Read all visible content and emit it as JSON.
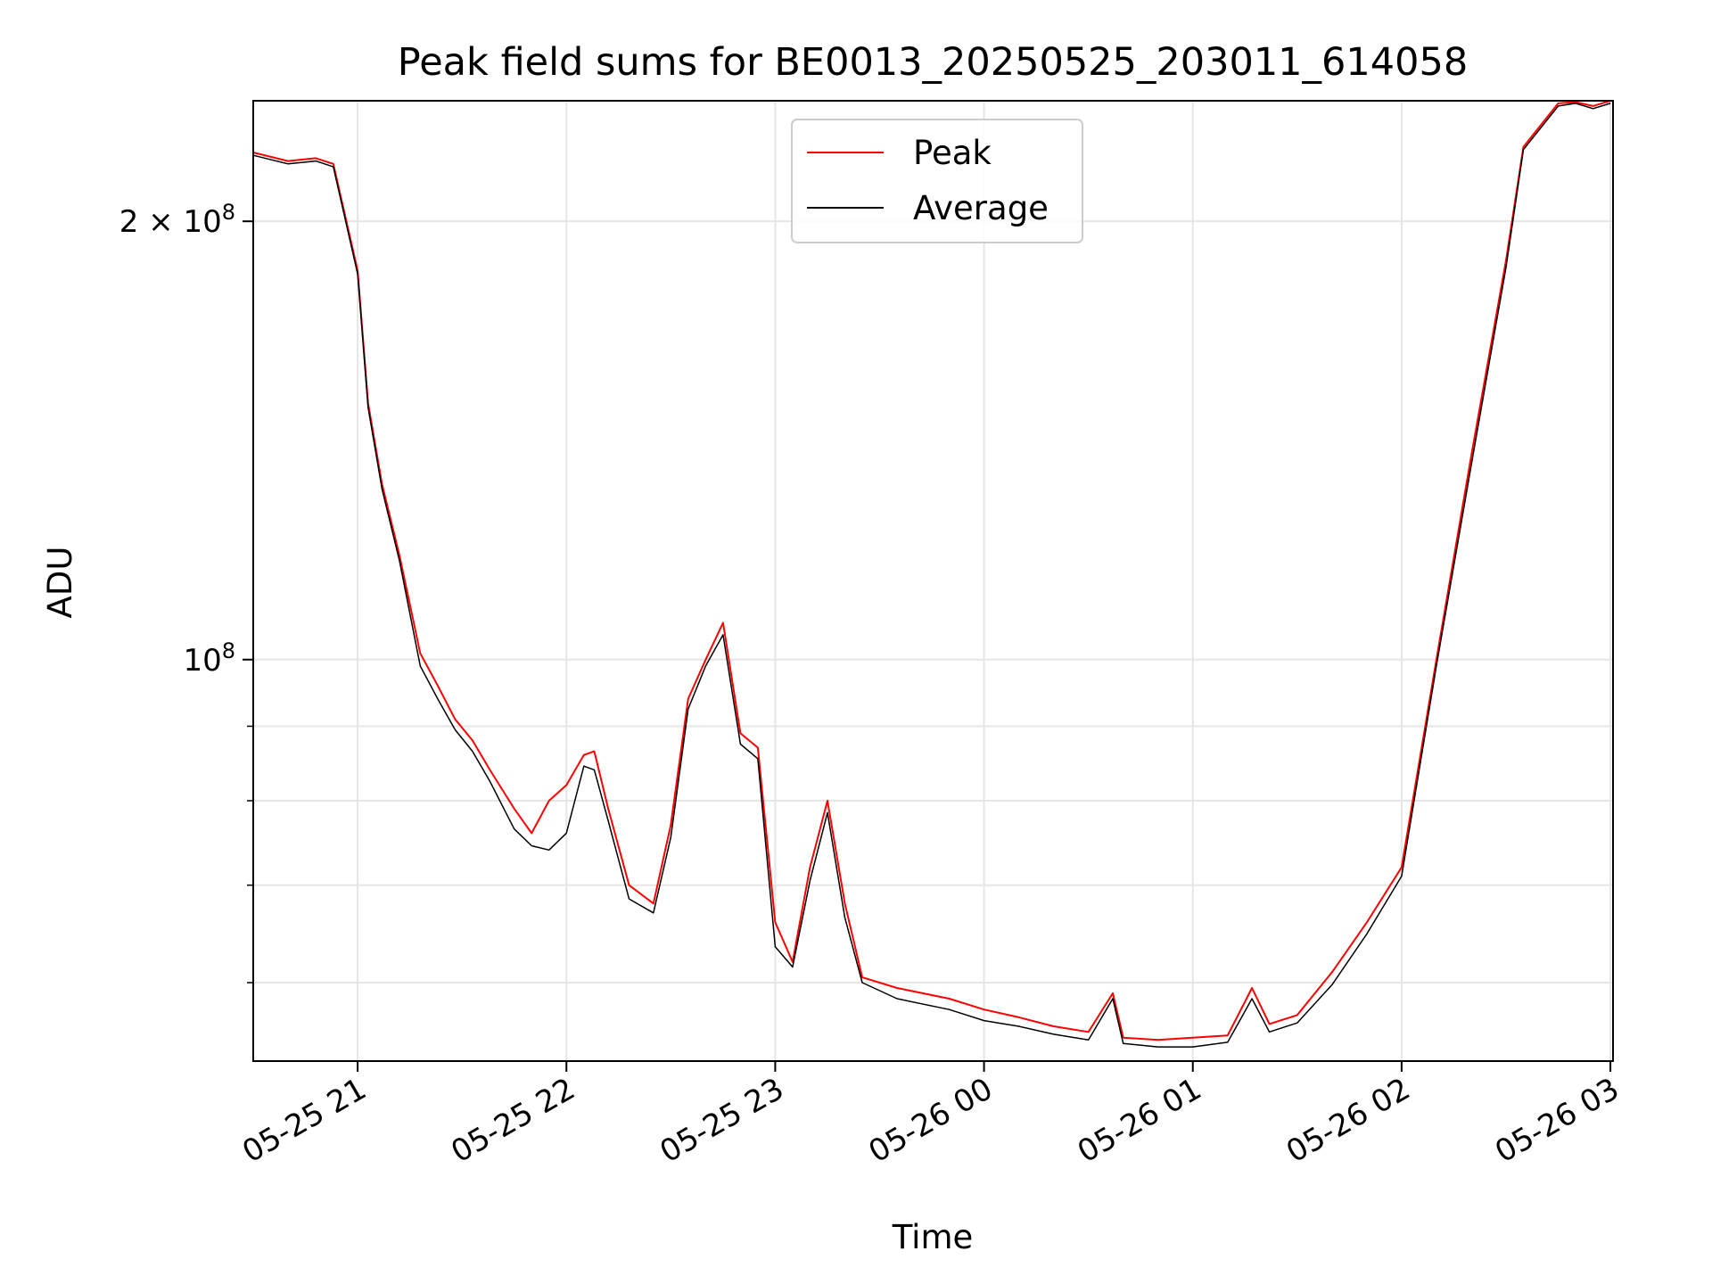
{
  "chart_data": {
    "type": "line",
    "title": "Peak field sums for BE0013_20250525_203011_614058",
    "xlabel": "Time",
    "ylabel": "ADU",
    "yscale": "log",
    "ylim": [
      53000000,
      242000000
    ],
    "xlim": [
      "2025-05-25 20:30:00",
      "2025-05-26 03:00:45"
    ],
    "grid": true,
    "legend": "top-center",
    "x_ticks": [
      {
        "label": "05-25 21",
        "value": "2025-05-25 21:00"
      },
      {
        "label": "05-25 22",
        "value": "2025-05-25 22:00"
      },
      {
        "label": "05-25 23",
        "value": "2025-05-25 23:00"
      },
      {
        "label": "05-26 00",
        "value": "2025-05-26 00:00"
      },
      {
        "label": "05-26 01",
        "value": "2025-05-26 01:00"
      },
      {
        "label": "05-26 02",
        "value": "2025-05-26 02:00"
      },
      {
        "label": "05-26 03",
        "value": "2025-05-26 03:00"
      }
    ],
    "y_major_ticks": [
      {
        "label": "10",
        "exp": "8",
        "value": 100000000
      },
      {
        "label": "2 × 10",
        "exp": "8",
        "value": 200000000
      }
    ],
    "y_minor_ticks": [
      60000000,
      70000000,
      80000000,
      90000000
    ],
    "series": [
      {
        "name": "Peak",
        "color": "#ff0000",
        "x": [
          "2025-05-25 20:30",
          "2025-05-25 20:40",
          "2025-05-25 20:48",
          "2025-05-25 20:53",
          "2025-05-25 21:00",
          "2025-05-25 21:03",
          "2025-05-25 21:07",
          "2025-05-25 21:12",
          "2025-05-25 21:18",
          "2025-05-25 21:23",
          "2025-05-25 21:28",
          "2025-05-25 21:33",
          "2025-05-25 21:38",
          "2025-05-25 21:45",
          "2025-05-25 21:50",
          "2025-05-25 21:55",
          "2025-05-25 22:00",
          "2025-05-25 22:05",
          "2025-05-25 22:08",
          "2025-05-25 22:12",
          "2025-05-25 22:18",
          "2025-05-25 22:25",
          "2025-05-25 22:30",
          "2025-05-25 22:35",
          "2025-05-25 22:40",
          "2025-05-25 22:45",
          "2025-05-25 22:50",
          "2025-05-25 22:55",
          "2025-05-25 23:00",
          "2025-05-25 23:05",
          "2025-05-25 23:10",
          "2025-05-25 23:15",
          "2025-05-25 23:20",
          "2025-05-25 23:25",
          "2025-05-25 23:35",
          "2025-05-25 23:50",
          "2025-05-26 00:00",
          "2025-05-26 00:10",
          "2025-05-26 00:20",
          "2025-05-26 00:30",
          "2025-05-26 00:37",
          "2025-05-26 00:40",
          "2025-05-26 00:50",
          "2025-05-26 01:00",
          "2025-05-26 01:10",
          "2025-05-26 01:17",
          "2025-05-26 01:22",
          "2025-05-26 01:30",
          "2025-05-26 01:40",
          "2025-05-26 01:50",
          "2025-05-26 02:00",
          "2025-05-26 02:10",
          "2025-05-26 02:20",
          "2025-05-26 02:30",
          "2025-05-26 02:35",
          "2025-05-26 02:45",
          "2025-05-26 02:50",
          "2025-05-26 02:55",
          "2025-05-26 03:00"
        ],
        "values": [
          223000000,
          220000000,
          221000000,
          219000000,
          185000000,
          150000000,
          132000000,
          118000000,
          101000000,
          96000000,
          91000000,
          88000000,
          84000000,
          79000000,
          76000000,
          80000000,
          82000000,
          86000000,
          86500000,
          79000000,
          70000000,
          68000000,
          77000000,
          94000000,
          100000000,
          106000000,
          89000000,
          87000000,
          66000000,
          62000000,
          72000000,
          80000000,
          68000000,
          60500000,
          59500000,
          58500000,
          57500000,
          56800000,
          56000000,
          55500000,
          59000000,
          55000000,
          54800000,
          55000000,
          55200000,
          59500000,
          56200000,
          57000000,
          61000000,
          66000000,
          72000000,
          100000000,
          138000000,
          188000000,
          225000000,
          241000000,
          241500000,
          240000000,
          242000000
        ]
      },
      {
        "name": "Average",
        "color": "#000000",
        "x": [
          "2025-05-25 20:30",
          "2025-05-25 20:40",
          "2025-05-25 20:48",
          "2025-05-25 20:53",
          "2025-05-25 21:00",
          "2025-05-25 21:03",
          "2025-05-25 21:07",
          "2025-05-25 21:12",
          "2025-05-25 21:18",
          "2025-05-25 21:23",
          "2025-05-25 21:28",
          "2025-05-25 21:33",
          "2025-05-25 21:38",
          "2025-05-25 21:45",
          "2025-05-25 21:50",
          "2025-05-25 21:55",
          "2025-05-25 22:00",
          "2025-05-25 22:05",
          "2025-05-25 22:08",
          "2025-05-25 22:12",
          "2025-05-25 22:18",
          "2025-05-25 22:25",
          "2025-05-25 22:30",
          "2025-05-25 22:35",
          "2025-05-25 22:40",
          "2025-05-25 22:45",
          "2025-05-25 22:50",
          "2025-05-25 22:55",
          "2025-05-25 23:00",
          "2025-05-25 23:05",
          "2025-05-25 23:10",
          "2025-05-25 23:15",
          "2025-05-25 23:20",
          "2025-05-25 23:25",
          "2025-05-25 23:35",
          "2025-05-25 23:50",
          "2025-05-26 00:00",
          "2025-05-26 00:10",
          "2025-05-26 00:20",
          "2025-05-26 00:30",
          "2025-05-26 00:37",
          "2025-05-26 00:40",
          "2025-05-26 00:50",
          "2025-05-26 01:00",
          "2025-05-26 01:10",
          "2025-05-26 01:17",
          "2025-05-26 01:22",
          "2025-05-26 01:30",
          "2025-05-26 01:40",
          "2025-05-26 01:50",
          "2025-05-26 02:00",
          "2025-05-26 02:10",
          "2025-05-26 02:20",
          "2025-05-26 02:30",
          "2025-05-26 02:35",
          "2025-05-26 02:45",
          "2025-05-26 02:50",
          "2025-05-26 02:55",
          "2025-05-26 03:00"
        ],
        "values": [
          222000000,
          219000000,
          220000000,
          218000000,
          184000000,
          149000000,
          131000000,
          117000000,
          99000000,
          94000000,
          89500000,
          86500000,
          82500000,
          76500000,
          74500000,
          74000000,
          76000000,
          84500000,
          84000000,
          77500000,
          68500000,
          67000000,
          75500000,
          92500000,
          99000000,
          104000000,
          87500000,
          85500000,
          63500000,
          61500000,
          70500000,
          78500000,
          66500000,
          60000000,
          58500000,
          57500000,
          56500000,
          56000000,
          55300000,
          54800000,
          58500000,
          54500000,
          54200000,
          54200000,
          54600000,
          58500000,
          55500000,
          56300000,
          59800000,
          64800000,
          71000000,
          99000000,
          136000000,
          186000000,
          224000000,
          240000000,
          241000000,
          239000000,
          241000000
        ]
      }
    ]
  }
}
